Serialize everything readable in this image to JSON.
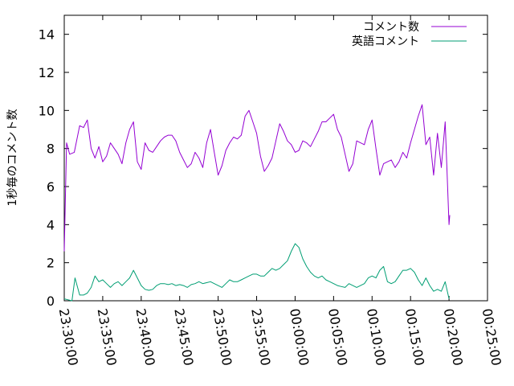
{
  "chart_data": {
    "type": "line",
    "title": "",
    "xlabel": "",
    "ylabel": "1秒毎のコメント数",
    "x_ticks": [
      "23:30:00",
      "23:35:00",
      "23:40:00",
      "23:45:00",
      "23:50:00",
      "23:55:00",
      "00:00:00",
      "00:05:00",
      "00:10:00",
      "00:15:00",
      "00:20:00",
      "00:25:00"
    ],
    "xlim_minutes": [
      0,
      55
    ],
    "y_ticks": [
      0,
      2,
      4,
      6,
      8,
      10,
      12,
      14
    ],
    "ylim": [
      0,
      15
    ],
    "grid": false,
    "legend_position": "top-right",
    "series": [
      {
        "name": "コメント数",
        "color": "#9400d3",
        "points": [
          [
            0.0,
            2.6
          ],
          [
            0.3,
            8.3
          ],
          [
            0.7,
            7.7
          ],
          [
            1.3,
            7.8
          ],
          [
            2.0,
            9.2
          ],
          [
            2.5,
            9.1
          ],
          [
            3.0,
            9.5
          ],
          [
            3.5,
            8.0
          ],
          [
            4.0,
            7.5
          ],
          [
            4.5,
            8.1
          ],
          [
            5.0,
            7.3
          ],
          [
            5.5,
            7.6
          ],
          [
            6.0,
            8.3
          ],
          [
            6.5,
            8.0
          ],
          [
            7.0,
            7.7
          ],
          [
            7.5,
            7.2
          ],
          [
            8.0,
            8.3
          ],
          [
            8.5,
            9.0
          ],
          [
            9.0,
            9.4
          ],
          [
            9.5,
            7.3
          ],
          [
            10.0,
            6.9
          ],
          [
            10.5,
            8.3
          ],
          [
            11.0,
            7.9
          ],
          [
            11.5,
            7.8
          ],
          [
            12.0,
            8.1
          ],
          [
            12.5,
            8.4
          ],
          [
            13.0,
            8.6
          ],
          [
            13.5,
            8.7
          ],
          [
            14.0,
            8.7
          ],
          [
            14.5,
            8.4
          ],
          [
            15.0,
            7.8
          ],
          [
            15.5,
            7.4
          ],
          [
            16.0,
            7.0
          ],
          [
            16.5,
            7.2
          ],
          [
            17.0,
            7.8
          ],
          [
            17.5,
            7.5
          ],
          [
            18.0,
            7.0
          ],
          [
            18.5,
            8.3
          ],
          [
            19.0,
            9.0
          ],
          [
            19.5,
            7.8
          ],
          [
            20.0,
            6.6
          ],
          [
            20.5,
            7.1
          ],
          [
            21.0,
            7.9
          ],
          [
            21.5,
            8.3
          ],
          [
            22.0,
            8.6
          ],
          [
            22.5,
            8.5
          ],
          [
            23.0,
            8.7
          ],
          [
            23.5,
            9.7
          ],
          [
            24.0,
            10.0
          ],
          [
            24.5,
            9.4
          ],
          [
            25.0,
            8.8
          ],
          [
            25.5,
            7.6
          ],
          [
            26.0,
            6.8
          ],
          [
            26.5,
            7.1
          ],
          [
            27.0,
            7.5
          ],
          [
            27.5,
            8.4
          ],
          [
            28.0,
            9.3
          ],
          [
            28.5,
            8.9
          ],
          [
            29.0,
            8.4
          ],
          [
            29.5,
            8.2
          ],
          [
            30.0,
            7.8
          ],
          [
            30.5,
            7.9
          ],
          [
            31.0,
            8.4
          ],
          [
            31.5,
            8.3
          ],
          [
            32.0,
            8.1
          ],
          [
            32.5,
            8.5
          ],
          [
            33.0,
            8.9
          ],
          [
            33.5,
            9.4
          ],
          [
            34.0,
            9.4
          ],
          [
            34.5,
            9.6
          ],
          [
            35.0,
            9.8
          ],
          [
            35.5,
            9.0
          ],
          [
            36.0,
            8.6
          ],
          [
            36.5,
            7.7
          ],
          [
            37.0,
            6.8
          ],
          [
            37.5,
            7.2
          ],
          [
            38.0,
            8.4
          ],
          [
            38.5,
            8.3
          ],
          [
            39.0,
            8.2
          ],
          [
            39.5,
            9.0
          ],
          [
            40.0,
            9.5
          ],
          [
            40.5,
            8.0
          ],
          [
            41.0,
            6.6
          ],
          [
            41.5,
            7.2
          ],
          [
            42.0,
            7.3
          ],
          [
            42.5,
            7.4
          ],
          [
            43.0,
            7.0
          ],
          [
            43.5,
            7.3
          ],
          [
            44.0,
            7.8
          ],
          [
            44.5,
            7.5
          ],
          [
            45.0,
            8.3
          ],
          [
            45.5,
            9.0
          ],
          [
            46.0,
            9.7
          ],
          [
            46.5,
            10.3
          ],
          [
            47.0,
            8.2
          ],
          [
            47.5,
            8.6
          ],
          [
            48.0,
            6.6
          ],
          [
            48.5,
            8.8
          ],
          [
            49.0,
            7.0
          ],
          [
            49.5,
            9.4
          ],
          [
            50.0,
            4.0
          ],
          [
            50.1,
            4.5
          ]
        ]
      },
      {
        "name": "英語コメント",
        "color": "#009e73",
        "points": [
          [
            0.0,
            0.1
          ],
          [
            0.5,
            0.05
          ],
          [
            1.0,
            0.0
          ],
          [
            1.4,
            1.2
          ],
          [
            2.0,
            0.3
          ],
          [
            2.5,
            0.3
          ],
          [
            3.0,
            0.4
          ],
          [
            3.5,
            0.7
          ],
          [
            4.0,
            1.3
          ],
          [
            4.5,
            1.0
          ],
          [
            5.0,
            1.1
          ],
          [
            5.5,
            0.9
          ],
          [
            6.0,
            0.7
          ],
          [
            6.5,
            0.9
          ],
          [
            7.0,
            1.0
          ],
          [
            7.5,
            0.8
          ],
          [
            8.0,
            1.0
          ],
          [
            8.5,
            1.2
          ],
          [
            9.0,
            1.6
          ],
          [
            9.5,
            1.2
          ],
          [
            10.0,
            0.8
          ],
          [
            10.5,
            0.6
          ],
          [
            11.0,
            0.55
          ],
          [
            11.5,
            0.6
          ],
          [
            12.0,
            0.8
          ],
          [
            12.5,
            0.9
          ],
          [
            13.0,
            0.9
          ],
          [
            13.5,
            0.85
          ],
          [
            14.0,
            0.9
          ],
          [
            14.5,
            0.8
          ],
          [
            15.0,
            0.85
          ],
          [
            15.5,
            0.8
          ],
          [
            16.0,
            0.7
          ],
          [
            16.5,
            0.85
          ],
          [
            17.0,
            0.9
          ],
          [
            17.5,
            1.0
          ],
          [
            18.0,
            0.9
          ],
          [
            18.5,
            0.95
          ],
          [
            19.0,
            1.0
          ],
          [
            19.5,
            0.9
          ],
          [
            20.0,
            0.8
          ],
          [
            20.5,
            0.7
          ],
          [
            21.0,
            0.9
          ],
          [
            21.5,
            1.1
          ],
          [
            22.0,
            1.0
          ],
          [
            22.5,
            1.0
          ],
          [
            23.0,
            1.1
          ],
          [
            23.5,
            1.2
          ],
          [
            24.0,
            1.3
          ],
          [
            24.5,
            1.4
          ],
          [
            25.0,
            1.4
          ],
          [
            25.5,
            1.3
          ],
          [
            26.0,
            1.3
          ],
          [
            26.5,
            1.5
          ],
          [
            27.0,
            1.7
          ],
          [
            27.5,
            1.6
          ],
          [
            28.0,
            1.7
          ],
          [
            28.5,
            1.9
          ],
          [
            29.0,
            2.1
          ],
          [
            29.5,
            2.6
          ],
          [
            30.0,
            3.0
          ],
          [
            30.5,
            2.8
          ],
          [
            31.0,
            2.2
          ],
          [
            31.5,
            1.8
          ],
          [
            32.0,
            1.5
          ],
          [
            32.5,
            1.3
          ],
          [
            33.0,
            1.2
          ],
          [
            33.5,
            1.3
          ],
          [
            34.0,
            1.1
          ],
          [
            34.5,
            1.0
          ],
          [
            35.0,
            0.9
          ],
          [
            35.5,
            0.8
          ],
          [
            36.0,
            0.75
          ],
          [
            36.5,
            0.7
          ],
          [
            37.0,
            0.9
          ],
          [
            37.5,
            0.8
          ],
          [
            38.0,
            0.7
          ],
          [
            38.5,
            0.8
          ],
          [
            39.0,
            0.9
          ],
          [
            39.5,
            1.2
          ],
          [
            40.0,
            1.3
          ],
          [
            40.5,
            1.2
          ],
          [
            41.0,
            1.6
          ],
          [
            41.5,
            1.8
          ],
          [
            42.0,
            1.0
          ],
          [
            42.5,
            0.9
          ],
          [
            43.0,
            1.0
          ],
          [
            43.5,
            1.3
          ],
          [
            44.0,
            1.6
          ],
          [
            44.5,
            1.6
          ],
          [
            45.0,
            1.7
          ],
          [
            45.5,
            1.5
          ],
          [
            46.0,
            1.1
          ],
          [
            46.5,
            0.8
          ],
          [
            47.0,
            1.2
          ],
          [
            47.5,
            0.8
          ],
          [
            48.0,
            0.5
          ],
          [
            48.5,
            0.6
          ],
          [
            49.0,
            0.5
          ],
          [
            49.5,
            1.0
          ],
          [
            50.0,
            0.1
          ]
        ]
      }
    ]
  }
}
